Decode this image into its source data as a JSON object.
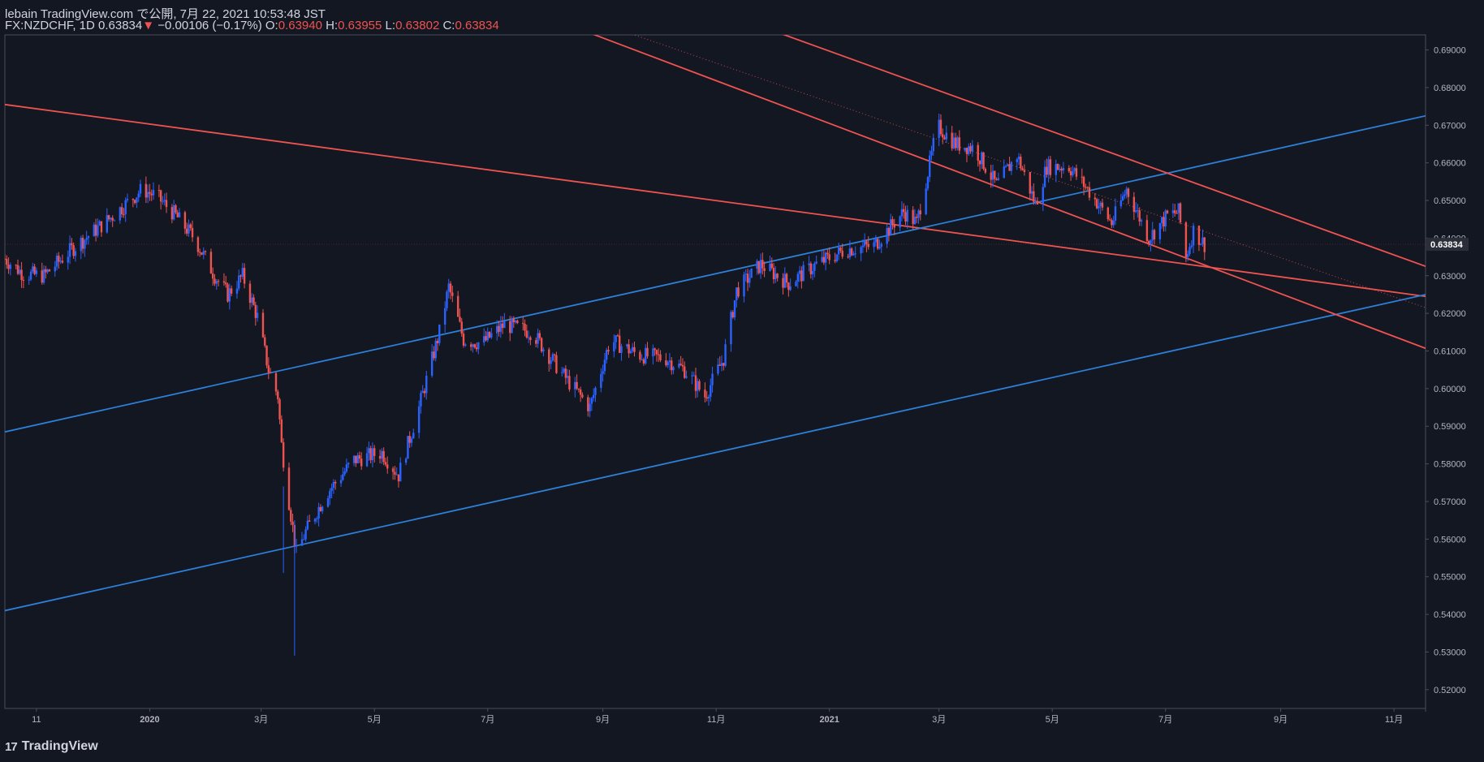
{
  "header": {
    "line1": "lebain TradingView.com で公開, 7月 22, 2021 10:53:48 JST",
    "symbol": "FX:NZDCHF, 1D",
    "last": "0.63834",
    "arrow": "▼",
    "change": "−0.00106 (−0.17%)",
    "o_label": "O:",
    "o": "0.63940",
    "h_label": "H:",
    "h": "0.63955",
    "l_label": "L:",
    "l": "0.63802",
    "c_label": "C:",
    "c": "0.63834"
  },
  "footer": {
    "brand": "TradingView",
    "logo": "17"
  },
  "colors": {
    "up": "#2962ff",
    "down": "#ef5350",
    "blue_line": "#2d7fd8",
    "red_line": "#ef5350",
    "bg": "#131722"
  },
  "chart_data": {
    "type": "candlestick",
    "symbol": "FX:NZDCHF",
    "interval": "1D",
    "ylim": [
      0.515,
      0.694
    ],
    "y_ticks": [
      "0.52000",
      "0.53000",
      "0.54000",
      "0.55000",
      "0.56000",
      "0.57000",
      "0.58000",
      "0.59000",
      "0.60000",
      "0.61000",
      "0.62000",
      "0.63000",
      "0.64000",
      "0.65000",
      "0.66000",
      "0.67000",
      "0.68000",
      "0.69000"
    ],
    "last_price": "0.63834",
    "x_ticks": [
      {
        "label": "11",
        "date": "2019-11-01"
      },
      {
        "label": "2020",
        "date": "2020-01-01"
      },
      {
        "label": "3月",
        "date": "2020-03-01"
      },
      {
        "label": "5月",
        "date": "2020-05-01"
      },
      {
        "label": "7月",
        "date": "2020-07-01"
      },
      {
        "label": "9月",
        "date": "2020-09-01"
      },
      {
        "label": "11月",
        "date": "2020-11-01"
      },
      {
        "label": "2021",
        "date": "2021-01-01"
      },
      {
        "label": "3月",
        "date": "2021-03-01"
      },
      {
        "label": "5月",
        "date": "2021-05-01"
      },
      {
        "label": "7月",
        "date": "2021-07-01"
      },
      {
        "label": "9月",
        "date": "2021-09-01"
      },
      {
        "label": "11月",
        "date": "2021-11-01"
      }
    ],
    "xlim": [
      "2019-10-15",
      "2021-11-18"
    ],
    "price_path": [
      [
        "2019-10-15",
        0.6345
      ],
      [
        "2019-10-25",
        0.6305
      ],
      [
        "2019-11-05",
        0.63
      ],
      [
        "2019-11-20",
        0.637
      ],
      [
        "2019-12-10",
        0.645
      ],
      [
        "2019-12-28",
        0.653
      ],
      [
        "2020-01-05",
        0.651
      ],
      [
        "2020-01-15",
        0.646
      ],
      [
        "2020-01-25",
        0.64
      ],
      [
        "2020-02-05",
        0.63
      ],
      [
        "2020-02-12",
        0.625
      ],
      [
        "2020-02-20",
        0.63
      ],
      [
        "2020-02-28",
        0.619
      ],
      [
        "2020-03-05",
        0.605
      ],
      [
        "2020-03-10",
        0.598
      ],
      [
        "2020-03-12",
        0.585
      ],
      [
        "2020-03-16",
        0.57
      ],
      [
        "2020-03-20",
        0.556
      ],
      [
        "2020-03-25",
        0.562
      ],
      [
        "2020-04-05",
        0.572
      ],
      [
        "2020-04-20",
        0.581
      ],
      [
        "2020-05-05",
        0.583
      ],
      [
        "2020-05-14",
        0.577
      ],
      [
        "2020-05-25",
        0.595
      ],
      [
        "2020-06-05",
        0.615
      ],
      [
        "2020-06-10",
        0.627
      ],
      [
        "2020-06-18",
        0.613
      ],
      [
        "2020-06-28",
        0.612
      ],
      [
        "2020-07-10",
        0.617
      ],
      [
        "2020-07-25",
        0.615
      ],
      [
        "2020-08-10",
        0.604
      ],
      [
        "2020-08-25",
        0.595
      ],
      [
        "2020-09-05",
        0.613
      ],
      [
        "2020-09-20",
        0.609
      ],
      [
        "2020-10-05",
        0.608
      ],
      [
        "2020-10-15",
        0.605
      ],
      [
        "2020-10-26",
        0.598
      ],
      [
        "2020-11-05",
        0.608
      ],
      [
        "2020-11-12",
        0.626
      ],
      [
        "2020-11-25",
        0.633
      ],
      [
        "2020-12-10",
        0.628
      ],
      [
        "2020-12-25",
        0.633
      ],
      [
        "2021-01-10",
        0.637
      ],
      [
        "2021-01-25",
        0.638
      ],
      [
        "2021-02-10",
        0.647
      ],
      [
        "2021-02-17",
        0.644
      ],
      [
        "2021-02-25",
        0.662
      ],
      [
        "2021-02-28",
        0.67
      ],
      [
        "2021-03-10",
        0.665
      ],
      [
        "2021-03-20",
        0.664
      ],
      [
        "2021-04-01",
        0.654
      ],
      [
        "2021-04-12",
        0.662
      ],
      [
        "2021-04-22",
        0.649
      ],
      [
        "2021-04-28",
        0.659
      ],
      [
        "2021-05-10",
        0.659
      ],
      [
        "2021-05-20",
        0.653
      ],
      [
        "2021-06-02",
        0.644
      ],
      [
        "2021-06-10",
        0.653
      ],
      [
        "2021-06-22",
        0.64
      ],
      [
        "2021-07-02",
        0.646
      ],
      [
        "2021-07-08",
        0.647
      ],
      [
        "2021-07-12",
        0.635
      ],
      [
        "2021-07-16",
        0.642
      ],
      [
        "2021-07-22",
        0.6383
      ]
    ],
    "trendlines": [
      {
        "name": "",
        "color": "red",
        "points": [
          [
            "2019-10-15",
            0.6755
          ],
          [
            "2021-11-18",
            0.6245
          ]
        ]
      },
      {
        "name": "",
        "color": "blue",
        "points": [
          [
            "2019-10-15",
            0.5885
          ],
          [
            "2021-11-18",
            0.6725
          ]
        ]
      },
      {
        "name": "",
        "color": "blue",
        "points": [
          [
            "2019-10-15",
            0.541
          ],
          [
            "2021-11-18",
            0.625
          ]
        ]
      },
      {
        "name": "",
        "color": "red",
        "points": [
          [
            "2020-08-25",
            0.6945
          ],
          [
            "2021-11-18",
            0.6107
          ]
        ]
      },
      {
        "name": "",
        "color": "red",
        "points": [
          [
            "2020-12-05",
            0.6945
          ],
          [
            "2021-11-18",
            0.6325
          ]
        ]
      },
      {
        "name": "",
        "color": "red_dotted",
        "points": [
          [
            "2020-09-15",
            0.6945
          ],
          [
            "2021-11-18",
            0.6215
          ]
        ]
      }
    ]
  }
}
